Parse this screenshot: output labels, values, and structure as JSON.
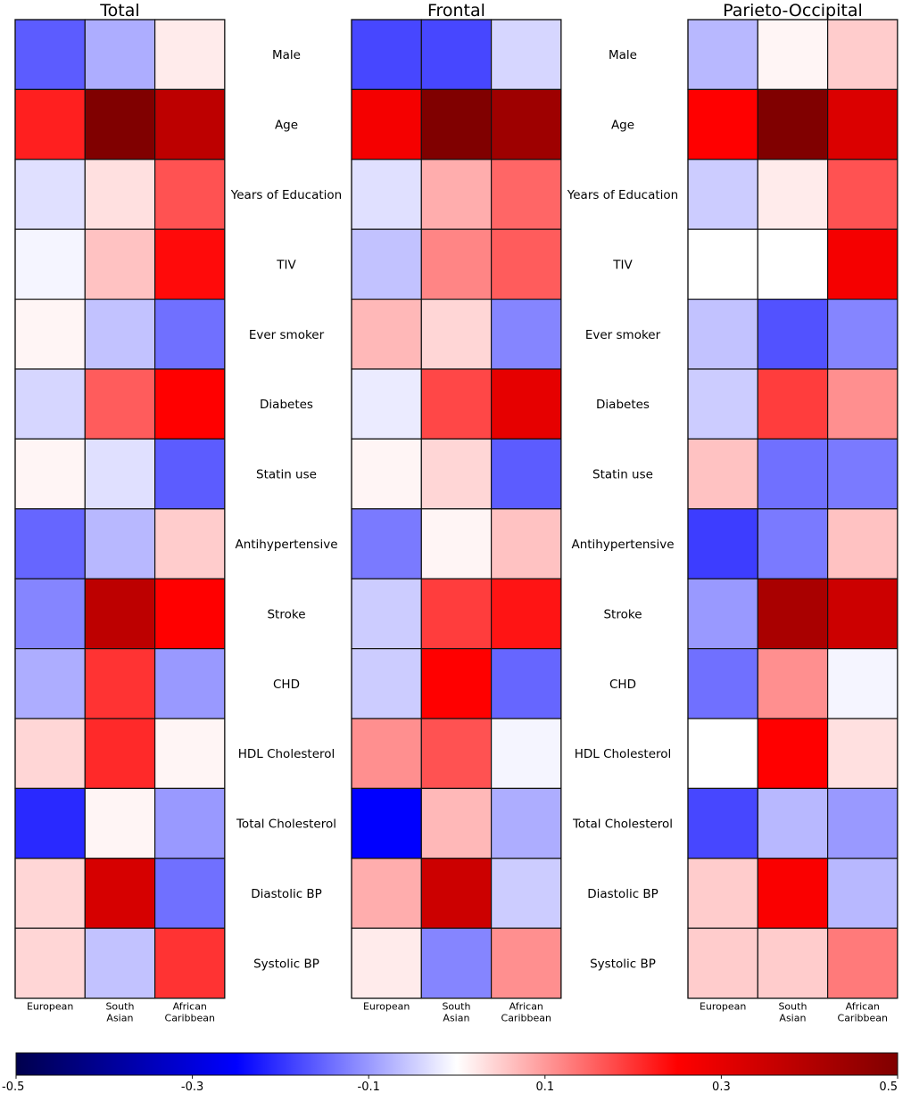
{
  "chart_data": {
    "type": "heatmap",
    "panels": [
      {
        "title": "Total",
        "columns": [
          "European",
          "South\nAsian",
          "African\nCaribbean"
        ],
        "values": [
          [
            -0.16,
            -0.08,
            0.02
          ],
          [
            0.22,
            0.5,
            0.38
          ],
          [
            -0.03,
            0.03,
            0.17
          ],
          [
            -0.01,
            0.06,
            0.24
          ],
          [
            0.01,
            -0.06,
            -0.14
          ],
          [
            -0.04,
            0.16,
            0.25
          ],
          [
            0.01,
            -0.03,
            -0.16
          ],
          [
            -0.15,
            -0.07,
            0.05
          ],
          [
            -0.12,
            0.38,
            0.25
          ],
          [
            -0.08,
            0.2,
            -0.1
          ],
          [
            0.04,
            0.21,
            0.01
          ],
          [
            -0.21,
            0.01,
            -0.1
          ],
          [
            0.04,
            0.33,
            -0.14
          ],
          [
            0.04,
            -0.06,
            0.2
          ]
        ]
      },
      {
        "title": "Frontal",
        "columns": [
          "European",
          "South\nAsian",
          "African\nCaribbean"
        ],
        "values": [
          [
            -0.18,
            -0.18,
            -0.04
          ],
          [
            0.27,
            0.5,
            0.44
          ],
          [
            -0.03,
            0.08,
            0.15
          ],
          [
            -0.06,
            0.12,
            0.16
          ],
          [
            0.07,
            0.04,
            -0.12
          ],
          [
            -0.02,
            0.18,
            0.3
          ],
          [
            0.01,
            0.04,
            -0.16
          ],
          [
            -0.13,
            0.01,
            0.06
          ],
          [
            -0.05,
            0.19,
            0.23
          ],
          [
            -0.05,
            0.25,
            -0.15
          ],
          [
            0.11,
            0.17,
            -0.01
          ],
          [
            -0.25,
            0.07,
            -0.08
          ],
          [
            0.08,
            0.35,
            -0.05
          ],
          [
            0.02,
            -0.12,
            0.11
          ]
        ]
      },
      {
        "title": "Parieto-Occipital",
        "columns": [
          "European",
          "South\nAsian",
          "African\nCaribbean"
        ],
        "values": [
          [
            -0.07,
            0.01,
            0.05
          ],
          [
            0.25,
            0.5,
            0.32
          ],
          [
            -0.05,
            0.02,
            0.17
          ],
          [
            0.0,
            0.0,
            0.27
          ],
          [
            -0.06,
            -0.17,
            -0.12
          ],
          [
            -0.05,
            0.19,
            0.11
          ],
          [
            0.06,
            -0.14,
            -0.13
          ],
          [
            -0.19,
            -0.13,
            0.06
          ],
          [
            -0.1,
            0.42,
            0.35
          ],
          [
            -0.14,
            0.11,
            -0.01
          ],
          [
            0.0,
            0.25,
            0.03
          ],
          [
            -0.18,
            -0.07,
            -0.1
          ],
          [
            0.05,
            0.26,
            -0.07
          ],
          [
            0.05,
            0.05,
            0.13
          ]
        ]
      }
    ],
    "rows": [
      "Male",
      "Age",
      "Years of Education",
      "TIV",
      "Ever smoker",
      "Diabetes",
      "Statin use",
      "Antihypertensive",
      "Stroke",
      "CHD",
      "HDL Cholesterol",
      "Total Cholesterol",
      "Diastolic BP",
      "Systolic BP"
    ],
    "colorbar": {
      "vmin": -0.5,
      "vmax": 0.5,
      "ticks": [
        -0.5,
        -0.3,
        -0.1,
        0.1,
        0.3,
        0.5
      ],
      "tick_labels": [
        "-0.5",
        "-0.3",
        "-0.1",
        "0.1",
        "0.3",
        "0.5"
      ],
      "colormap": "seismic",
      "orientation": "horizontal"
    },
    "grid": true
  }
}
